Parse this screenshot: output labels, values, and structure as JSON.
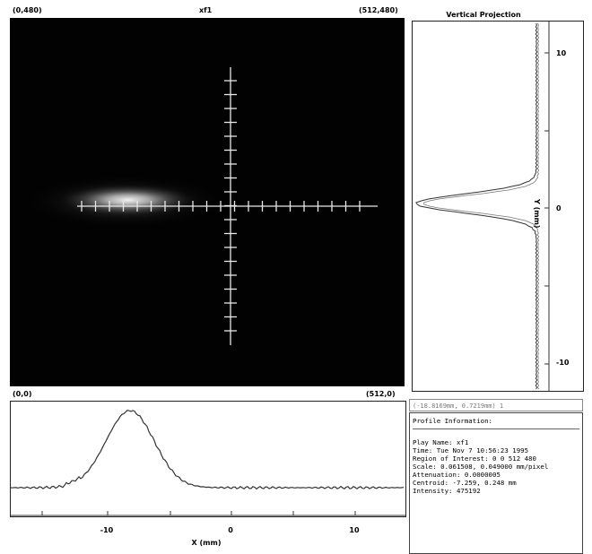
{
  "image": {
    "title": "xf1",
    "corner_top_left": "(0,480)",
    "corner_top_right": "(512,480)",
    "corner_bottom_left": "(0,0)",
    "corner_bottom_right": "(512,0)"
  },
  "vertical_projection": {
    "title": "Vertical Projection",
    "axis_label": "Y (mm)",
    "ticks": [
      "10",
      "0",
      "-10"
    ]
  },
  "horizontal_projection": {
    "axis_label": "X (mm)",
    "ticks": [
      "-10",
      "0",
      "10"
    ]
  },
  "coordinate_readout": "(-18.8169mm, 0.7219mm) 1",
  "profile_info": {
    "header": "Profile Information:",
    "lines": [
      "Play Name: xf1",
      "Time: Tue Nov  7 10:56:23 1995",
      "Region of Interest: 0 0 512 480",
      "Scale: 0.061508, 0.049000 mm/pixel",
      "Attenuation: 0.0000005",
      "Centroid: -7.259, 0.248 mm",
      "Intensity: 475192"
    ]
  },
  "colors": {
    "image_background": "#020202",
    "crosshair": "#e8e8e8",
    "trace": "#333333"
  }
}
